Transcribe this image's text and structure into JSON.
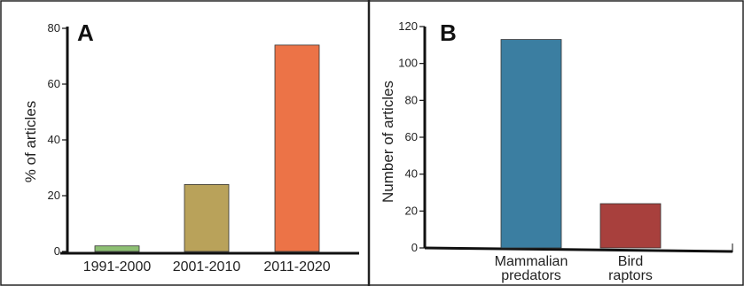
{
  "chart_data": [
    {
      "type": "bar",
      "panel_label": "A",
      "categories": [
        "1991-2000",
        "2001-2010",
        "2011-2020"
      ],
      "values": [
        2,
        24,
        74
      ],
      "ylabel": "% of articles",
      "xlabel": "",
      "ylim": [
        0,
        80
      ],
      "yticks": [
        0,
        20,
        40,
        60,
        80
      ],
      "colors": [
        "#8dbf73",
        "#b9a25a",
        "#ec7347"
      ],
      "grid": false
    },
    {
      "type": "bar",
      "panel_label": "B",
      "categories": [
        "Mammalian\npredators",
        "Bird\nraptors"
      ],
      "values": [
        113,
        24
      ],
      "ylabel": "Number of articles",
      "xlabel": "",
      "ylim": [
        0,
        120
      ],
      "yticks": [
        0,
        20,
        40,
        60,
        80,
        100,
        120
      ],
      "colors": [
        "#3b7ea1",
        "#a8403d"
      ],
      "grid": false
    }
  ]
}
